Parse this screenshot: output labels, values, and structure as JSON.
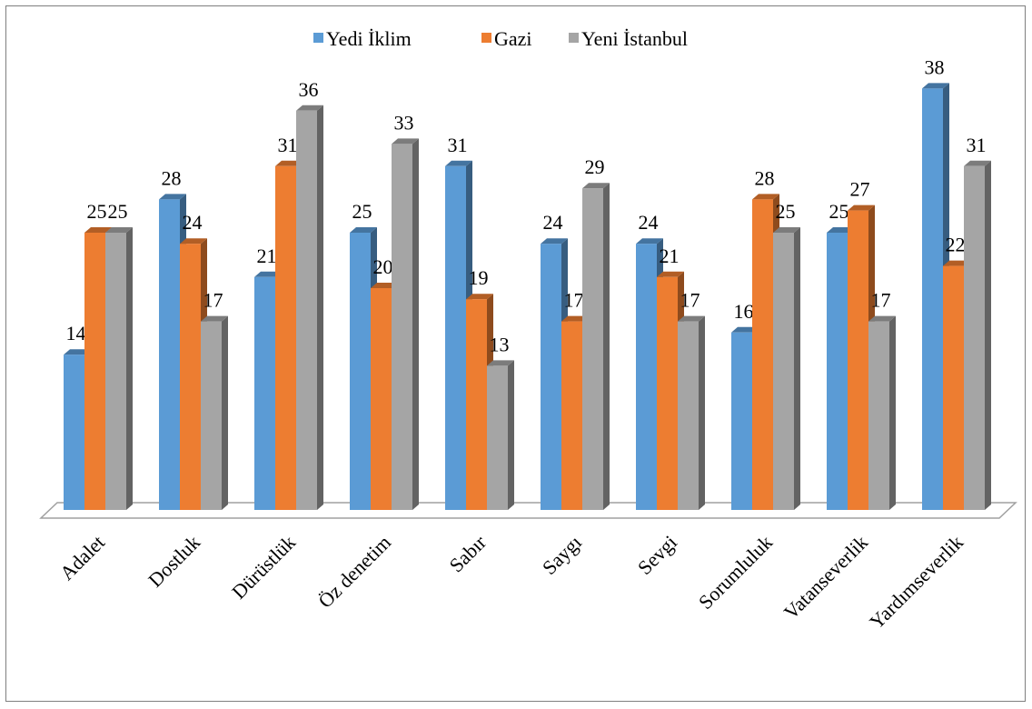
{
  "chart_data": {
    "type": "bar3d",
    "categories": [
      "Adalet",
      "Dostluk",
      "Dürüstlük",
      "Öz denetim",
      "Sabır",
      "Saygı",
      "Sevgi",
      "Sorumluluk",
      "Vatanseverlik",
      "Yardımseverlik"
    ],
    "series": [
      {
        "name": "Yedi İklim",
        "color": "#5b9bd5",
        "values": [
          14,
          28,
          21,
          25,
          31,
          24,
          24,
          16,
          25,
          38
        ]
      },
      {
        "name": "Gazi",
        "color": "#ed7d31",
        "values": [
          25,
          24,
          31,
          20,
          19,
          17,
          21,
          28,
          27,
          22
        ]
      },
      {
        "name": "Yeni İstanbul",
        "color": "#a5a5a5",
        "values": [
          25,
          17,
          36,
          33,
          13,
          29,
          17,
          25,
          17,
          31
        ]
      }
    ],
    "ylim": [
      0,
      40
    ],
    "legend": "top"
  }
}
